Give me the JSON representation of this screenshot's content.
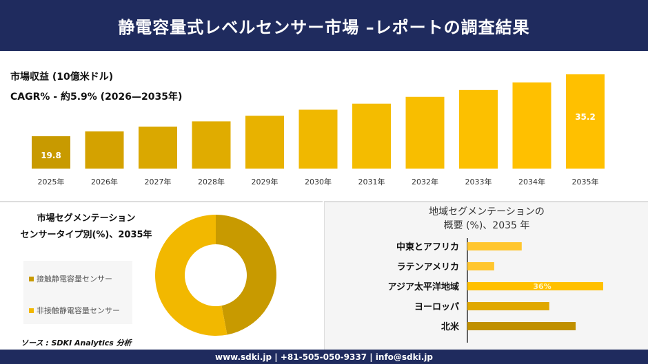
{
  "header": {
    "title": "静電容量式レベルセンサー市場 –レポートの調査結果"
  },
  "revenue": {
    "title": "市場収益 (10億米ドル)",
    "cagr": "CAGR% - 約5.9% (2026—2035年)"
  },
  "chart_data": [
    {
      "type": "bar",
      "title": "市場収益 (10億米ドル)",
      "categories": [
        "2025年",
        "2026年",
        "2027年",
        "2028年",
        "2029年",
        "2030年",
        "2031年",
        "2032年",
        "2033年",
        "2034年",
        "2035年"
      ],
      "values": [
        19.8,
        21.0,
        22.2,
        23.5,
        24.9,
        26.4,
        27.9,
        29.6,
        31.3,
        33.2,
        35.2
      ],
      "data_labels": {
        "0": "19.8",
        "10": "35.2"
      }
    },
    {
      "type": "pie",
      "title": "市場セグメンテーション センサータイプ別(%)、2035年",
      "labels": [
        "接触静電容量センサー",
        "非接触静電容量センサー"
      ],
      "values": [
        47,
        53
      ],
      "colors": [
        "#c89a00",
        "#f2b800"
      ],
      "donut": true,
      "legend": "left"
    },
    {
      "type": "bar",
      "orientation": "horizontal",
      "title": "地域セグメンテーションの 概要 (%)、2035 年",
      "categories": [
        "中東とアフリカ",
        "ラテンアメリカ",
        "アジア太平洋地域",
        "ヨーロッパ",
        "北米"
      ],
      "values": [
        14.4,
        7.1,
        36,
        21.7,
        28.7
      ],
      "colors": [
        "#ffc62e",
        "#ffc62e",
        "#ffc000",
        "#e0a800",
        "#c09000"
      ],
      "data_labels": {
        "2": "36%"
      }
    }
  ],
  "segment": {
    "title1": "市場セグメンテーション",
    "title2": "センサータイプ別(%)、2035年"
  },
  "region": {
    "title1": "地域セグメンテーションの",
    "title2": "概要 (%)、2035 年"
  },
  "source": "ソース : SDKI Analytics 分析",
  "footer": {
    "contact": "www.sdki.jp | +81-505-050-9337 | info@sdki.jp"
  }
}
